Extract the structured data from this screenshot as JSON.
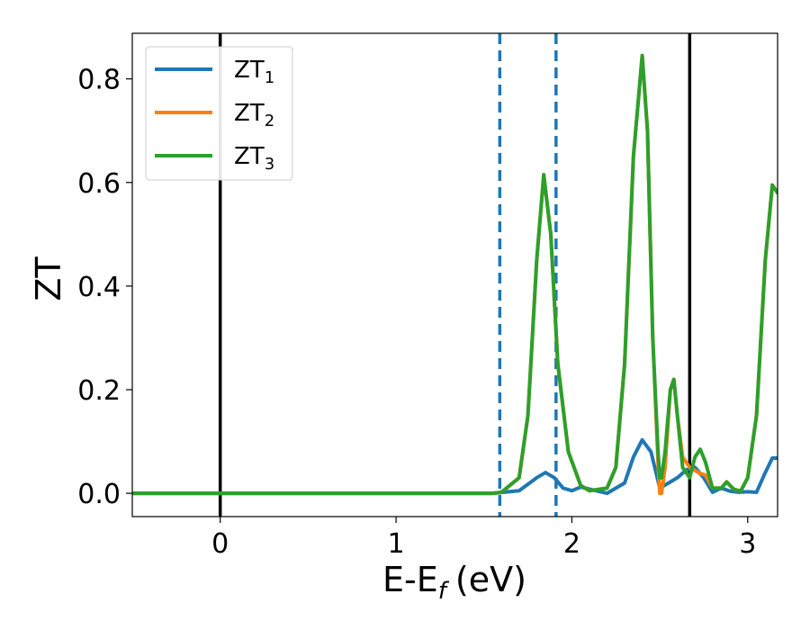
{
  "chart_data": {
    "type": "line",
    "xlabel": "E-E",
    "xlabel_sub": "f",
    "xlabel_unit": "(eV)",
    "ylabel": "ZT",
    "xlim": [
      -0.5,
      3.17
    ],
    "ylim": [
      -0.045,
      0.888
    ],
    "xticks": [
      0,
      1,
      2,
      3
    ],
    "yticks": [
      0.0,
      0.2,
      0.4,
      0.6,
      0.8
    ],
    "xtick_labels": [
      "0",
      "1",
      "2",
      "3"
    ],
    "ytick_labels": [
      "0.0",
      "0.2",
      "0.4",
      "0.6",
      "0.8"
    ],
    "grid": false,
    "legend_position": "top-left",
    "vlines": [
      {
        "x": 0.0,
        "style": "solid",
        "color": "#000000"
      },
      {
        "x": 1.59,
        "style": "dashed",
        "color": "#1f77b4"
      },
      {
        "x": 1.91,
        "style": "dashed",
        "color": "#1f77b4"
      },
      {
        "x": 2.67,
        "style": "solid",
        "color": "#000000"
      }
    ],
    "series": [
      {
        "name": "ZT",
        "sub": "1",
        "color": "#1f77b4",
        "points": [
          [
            -0.5,
            0
          ],
          [
            1.55,
            0
          ],
          [
            1.7,
            0.005
          ],
          [
            1.8,
            0.03
          ],
          [
            1.85,
            0.04
          ],
          [
            1.9,
            0.03
          ],
          [
            1.95,
            0.01
          ],
          [
            2.0,
            0.005
          ],
          [
            2.05,
            0.012
          ],
          [
            2.1,
            0.008
          ],
          [
            2.2,
            0
          ],
          [
            2.3,
            0.02
          ],
          [
            2.35,
            0.07
          ],
          [
            2.4,
            0.103
          ],
          [
            2.45,
            0.08
          ],
          [
            2.5,
            0.01
          ],
          [
            2.55,
            0.02
          ],
          [
            2.6,
            0.03
          ],
          [
            2.65,
            0.045
          ],
          [
            2.7,
            0.05
          ],
          [
            2.75,
            0.03
          ],
          [
            2.8,
            0.002
          ],
          [
            2.85,
            0.01
          ],
          [
            2.9,
            0.004
          ],
          [
            2.95,
            0.002
          ],
          [
            3.0,
            0.003
          ],
          [
            3.05,
            0.002
          ],
          [
            3.1,
            0.04
          ],
          [
            3.14,
            0.068
          ],
          [
            3.17,
            0.068
          ]
        ]
      },
      {
        "name": "ZT",
        "sub": "2",
        "color": "#ff7f0e",
        "points": [
          [
            -0.5,
            0
          ],
          [
            1.55,
            0
          ],
          [
            1.6,
            0.002
          ],
          [
            1.7,
            0.03
          ],
          [
            1.75,
            0.15
          ],
          [
            1.8,
            0.45
          ],
          [
            1.84,
            0.615
          ],
          [
            1.88,
            0.5
          ],
          [
            1.92,
            0.25
          ],
          [
            1.98,
            0.08
          ],
          [
            2.05,
            0.015
          ],
          [
            2.1,
            0.005
          ],
          [
            2.2,
            0.01
          ],
          [
            2.25,
            0.05
          ],
          [
            2.3,
            0.25
          ],
          [
            2.35,
            0.65
          ],
          [
            2.4,
            0.845
          ],
          [
            2.43,
            0.7
          ],
          [
            2.46,
            0.3
          ],
          [
            2.49,
            0.06
          ],
          [
            2.5,
            0.0
          ],
          [
            2.51,
            0.0
          ],
          [
            2.53,
            0.05
          ],
          [
            2.56,
            0.2
          ],
          [
            2.58,
            0.22
          ],
          [
            2.6,
            0.15
          ],
          [
            2.63,
            0.07
          ],
          [
            2.67,
            0.05
          ],
          [
            2.72,
            0.04
          ],
          [
            2.76,
            0.035
          ],
          [
            2.8,
            0.01
          ],
          [
            2.85,
            0.01
          ],
          [
            2.88,
            0.022
          ],
          [
            2.92,
            0.008
          ],
          [
            2.96,
            0.004
          ],
          [
            3.0,
            0.03
          ],
          [
            3.05,
            0.15
          ],
          [
            3.1,
            0.45
          ],
          [
            3.14,
            0.595
          ],
          [
            3.17,
            0.58
          ]
        ]
      },
      {
        "name": "ZT",
        "sub": "3",
        "color": "#2ca02c",
        "points": [
          [
            -0.5,
            0
          ],
          [
            1.55,
            0
          ],
          [
            1.6,
            0.002
          ],
          [
            1.7,
            0.03
          ],
          [
            1.75,
            0.15
          ],
          [
            1.8,
            0.45
          ],
          [
            1.84,
            0.615
          ],
          [
            1.88,
            0.5
          ],
          [
            1.92,
            0.25
          ],
          [
            1.98,
            0.08
          ],
          [
            2.05,
            0.015
          ],
          [
            2.1,
            0.005
          ],
          [
            2.2,
            0.01
          ],
          [
            2.25,
            0.05
          ],
          [
            2.3,
            0.25
          ],
          [
            2.35,
            0.65
          ],
          [
            2.4,
            0.845
          ],
          [
            2.43,
            0.7
          ],
          [
            2.46,
            0.3
          ],
          [
            2.49,
            0.08
          ],
          [
            2.5,
            0.03
          ],
          [
            2.51,
            0.03
          ],
          [
            2.53,
            0.08
          ],
          [
            2.56,
            0.2
          ],
          [
            2.58,
            0.22
          ],
          [
            2.6,
            0.15
          ],
          [
            2.63,
            0.05
          ],
          [
            2.67,
            0.03
          ],
          [
            2.7,
            0.07
          ],
          [
            2.73,
            0.085
          ],
          [
            2.76,
            0.06
          ],
          [
            2.8,
            0.01
          ],
          [
            2.85,
            0.01
          ],
          [
            2.88,
            0.022
          ],
          [
            2.92,
            0.008
          ],
          [
            2.96,
            0.004
          ],
          [
            3.0,
            0.03
          ],
          [
            3.05,
            0.15
          ],
          [
            3.1,
            0.45
          ],
          [
            3.14,
            0.595
          ],
          [
            3.17,
            0.58
          ]
        ]
      }
    ]
  }
}
